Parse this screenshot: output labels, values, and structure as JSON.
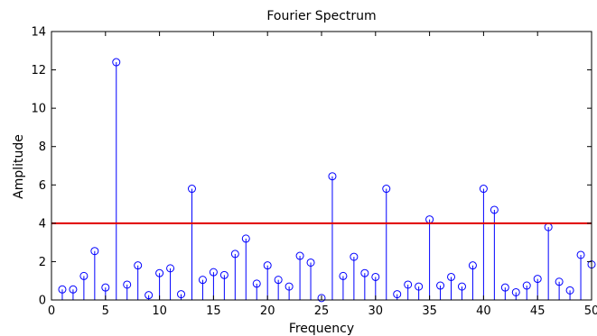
{
  "chart_data": {
    "type": "stem",
    "title": "Fourier Spectrum",
    "xlabel": "Frequency",
    "ylabel": "Amplitude",
    "xlim": [
      0,
      50
    ],
    "ylim": [
      0,
      14
    ],
    "xticks": [
      "0",
      "5",
      "10",
      "15",
      "20",
      "25",
      "30",
      "35",
      "40",
      "45",
      "50"
    ],
    "yticks": [
      "0",
      "2",
      "4",
      "6",
      "8",
      "10",
      "12",
      "14"
    ],
    "grid": false,
    "threshold": 4,
    "colors": {
      "stem": "#0000ff",
      "threshold": "#e00000",
      "axes": "#000000"
    },
    "x": [
      1,
      2,
      3,
      4,
      5,
      6,
      7,
      8,
      9,
      10,
      11,
      12,
      13,
      14,
      15,
      16,
      17,
      18,
      19,
      20,
      21,
      22,
      23,
      24,
      25,
      26,
      27,
      28,
      29,
      30,
      31,
      32,
      33,
      34,
      35,
      36,
      37,
      38,
      39,
      40,
      41,
      42,
      43,
      44,
      45,
      46,
      47,
      48,
      49,
      50
    ],
    "y": [
      0.55,
      0.55,
      1.25,
      2.55,
      0.65,
      12.4,
      0.8,
      1.8,
      0.25,
      1.4,
      1.65,
      0.3,
      5.8,
      1.05,
      1.45,
      1.3,
      2.4,
      3.2,
      0.85,
      1.8,
      1.05,
      0.7,
      2.3,
      1.95,
      0.1,
      6.45,
      1.25,
      2.25,
      1.4,
      1.2,
      5.8,
      0.3,
      0.8,
      0.7,
      4.2,
      0.75,
      1.2,
      0.7,
      1.8,
      5.8,
      4.7,
      0.65,
      0.4,
      0.75,
      1.1,
      3.8,
      0.95,
      0.5,
      2.35,
      1.85
    ]
  }
}
